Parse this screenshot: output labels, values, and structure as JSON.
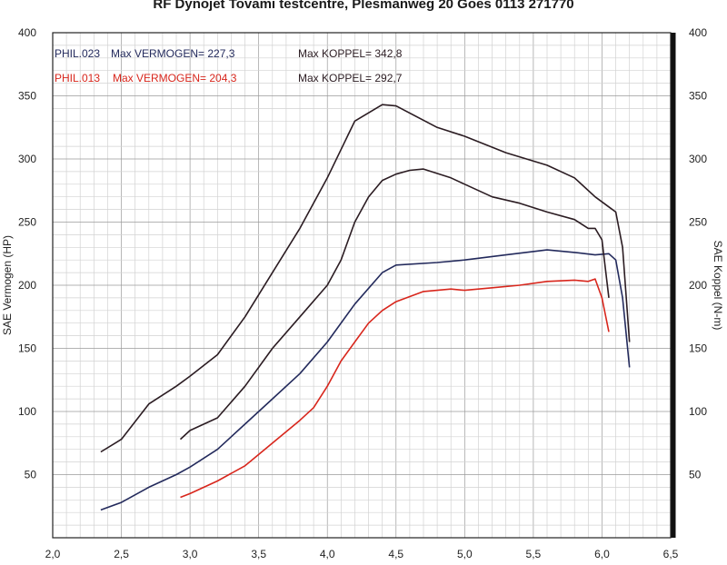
{
  "title": "RF Dynojet Tovami testcentre, Plesmanweg 20 Goes 0113 271770",
  "chart_data": {
    "type": "line",
    "title": "RF Dynojet Tovami testcentre, Plesmanweg 20 Goes 0113 271770",
    "xlabel": "",
    "ylabel_left": "SAE Vermogen (HP)",
    "ylabel_right": "SAE Koppel (N-m)",
    "xlim": [
      2.0,
      6.5
    ],
    "ylim_left": [
      0,
      400
    ],
    "ylim_right": [
      0,
      400
    ],
    "x_ticks": [
      "2,0",
      "2,5",
      "3,0",
      "3,5",
      "4,0",
      "4,5",
      "5,0",
      "5,5",
      "6,0",
      "6,5"
    ],
    "y_ticks_left": [
      "50",
      "100",
      "150",
      "200",
      "250",
      "300",
      "350",
      "400"
    ],
    "y_ticks_right": [
      "50",
      "100",
      "150",
      "200",
      "250",
      "300",
      "350",
      "400"
    ],
    "grid": true,
    "legend": {
      "run1": {
        "name": "PHIL.023",
        "power_label": "Max VERMOGEN= 227,3",
        "torque_label": "Max KOPPEL= 342,8",
        "color": "#232a5c"
      },
      "run2": {
        "name": "PHIL.013",
        "power_label": "Max VERMOGEN= 204,3",
        "torque_label": "Max KOPPEL= 292,7",
        "color": "#d8261c"
      }
    },
    "series": [
      {
        "name": "PHIL.023 Max VERMOGEN= 227,3",
        "color": "#232a5c",
        "x": [
          2.35,
          2.5,
          2.7,
          2.9,
          3.0,
          3.2,
          3.4,
          3.6,
          3.8,
          4.0,
          4.2,
          4.4,
          4.5,
          4.8,
          5.0,
          5.3,
          5.6,
          5.8,
          5.95,
          6.05,
          6.1,
          6.15,
          6.2
        ],
        "y": [
          22,
          28,
          40,
          50,
          56,
          70,
          90,
          110,
          130,
          155,
          185,
          210,
          216,
          218,
          220,
          224,
          228,
          226,
          224,
          225,
          220,
          190,
          135
        ]
      },
      {
        "name": "PHIL.023 Max KOPPEL= 342,8",
        "color": "#2b1c22",
        "x": [
          2.35,
          2.5,
          2.7,
          2.9,
          3.0,
          3.2,
          3.4,
          3.6,
          3.8,
          4.0,
          4.2,
          4.4,
          4.5,
          4.8,
          5.0,
          5.3,
          5.6,
          5.8,
          5.95,
          6.05,
          6.1,
          6.15,
          6.2
        ],
        "y": [
          68,
          78,
          106,
          120,
          128,
          145,
          175,
          210,
          245,
          285,
          330,
          343,
          342,
          325,
          318,
          305,
          295,
          285,
          270,
          262,
          258,
          230,
          155
        ]
      },
      {
        "name": "PHIL.013 Max VERMOGEN= 204,3",
        "color": "#d8261c",
        "x": [
          2.93,
          3.0,
          3.2,
          3.4,
          3.6,
          3.8,
          3.9,
          4.0,
          4.1,
          4.2,
          4.3,
          4.4,
          4.5,
          4.7,
          4.9,
          5.0,
          5.2,
          5.4,
          5.6,
          5.8,
          5.9,
          5.95,
          6.0,
          6.05
        ],
        "y": [
          32,
          35,
          45,
          57,
          75,
          93,
          103,
          120,
          140,
          155,
          170,
          180,
          187,
          195,
          197,
          196,
          198,
          200,
          203,
          204,
          203,
          205,
          190,
          163
        ]
      },
      {
        "name": "PHIL.013 Max KOPPEL= 292,7",
        "color": "#2b1c22",
        "x": [
          2.93,
          3.0,
          3.2,
          3.4,
          3.6,
          3.8,
          4.0,
          4.1,
          4.2,
          4.3,
          4.4,
          4.5,
          4.6,
          4.7,
          4.9,
          5.0,
          5.2,
          5.4,
          5.6,
          5.8,
          5.9,
          5.95,
          6.0,
          6.05
        ],
        "y": [
          78,
          85,
          95,
          120,
          150,
          175,
          200,
          220,
          250,
          270,
          283,
          288,
          291,
          292,
          285,
          280,
          270,
          265,
          258,
          252,
          245,
          245,
          236,
          190
        ]
      }
    ]
  }
}
